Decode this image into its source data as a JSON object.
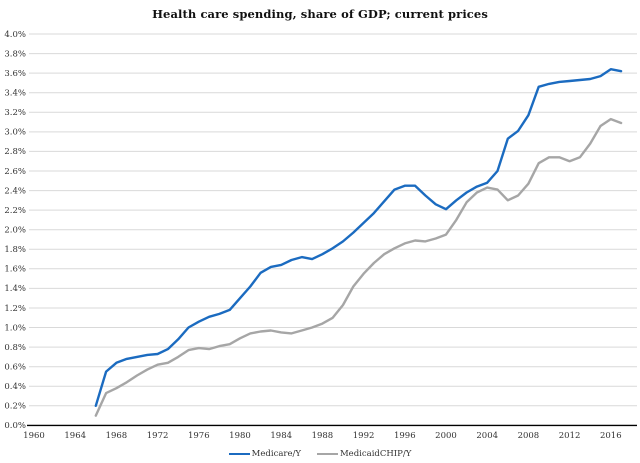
{
  "title": "Health care spending, share of GDP; current prices",
  "colors": {
    "medicare": "#1B6BC0",
    "medicaidchip": "#A6A6A6",
    "gridline": "#D9D9D9",
    "axis": "#000000",
    "tick_text": "#333333"
  },
  "legend": {
    "medicare_label": "Medicare/Y",
    "medicaidchip_label": "MedicaidCHIP/Y"
  },
  "chart_data": {
    "type": "line",
    "title": "Health care spending, share of GDP; current prices",
    "xlabel": "",
    "ylabel": "",
    "grid": true,
    "legend_position": "bottom",
    "xlim": [
      1959.5,
      2018.5
    ],
    "ylim": [
      0,
      4.0
    ],
    "x_ticks": [
      1960,
      1964,
      1968,
      1972,
      1976,
      1980,
      1984,
      1988,
      1992,
      1996,
      2000,
      2004,
      2008,
      2012,
      2016
    ],
    "y_ticks": [
      "0.0%",
      "0.2%",
      "0.4%",
      "0.6%",
      "0.8%",
      "1.0%",
      "1.2%",
      "1.4%",
      "1.6%",
      "1.8%",
      "2.0%",
      "2.2%",
      "2.4%",
      "2.6%",
      "2.8%",
      "3.0%",
      "3.2%",
      "3.4%",
      "3.6%",
      "3.8%",
      "4.0%"
    ],
    "x": [
      1966,
      1967,
      1968,
      1969,
      1970,
      1971,
      1972,
      1973,
      1974,
      1975,
      1976,
      1977,
      1978,
      1979,
      1980,
      1981,
      1982,
      1983,
      1984,
      1985,
      1986,
      1987,
      1988,
      1989,
      1990,
      1991,
      1992,
      1993,
      1994,
      1995,
      1996,
      1997,
      1998,
      1999,
      2000,
      2001,
      2002,
      2003,
      2004,
      2005,
      2006,
      2007,
      2008,
      2009,
      2010,
      2011,
      2012,
      2013,
      2014,
      2015,
      2016,
      2017
    ],
    "series": [
      {
        "id": "medicare",
        "name": "Medicare/Y",
        "color": "#1B6BC0",
        "values": [
          0.2,
          0.55,
          0.64,
          0.68,
          0.7,
          0.72,
          0.73,
          0.78,
          0.88,
          1.0,
          1.06,
          1.11,
          1.14,
          1.18,
          1.3,
          1.42,
          1.56,
          1.62,
          1.64,
          1.69,
          1.72,
          1.7,
          1.75,
          1.81,
          1.88,
          1.97,
          2.07,
          2.17,
          2.29,
          2.41,
          2.45,
          2.45,
          2.35,
          2.26,
          2.21,
          2.3,
          2.38,
          2.44,
          2.48,
          2.6,
          2.93,
          3.01,
          3.17,
          3.46,
          3.49,
          3.51,
          3.52,
          3.53,
          3.54,
          3.57,
          3.64,
          3.62
        ]
      },
      {
        "id": "medicaidchip",
        "name": "MedicaidCHIP/Y",
        "color": "#A6A6A6",
        "values": [
          0.1,
          0.33,
          0.38,
          0.44,
          0.51,
          0.57,
          0.62,
          0.64,
          0.7,
          0.77,
          0.79,
          0.78,
          0.81,
          0.83,
          0.89,
          0.94,
          0.96,
          0.97,
          0.95,
          0.94,
          0.97,
          1.0,
          1.04,
          1.1,
          1.23,
          1.42,
          1.55,
          1.66,
          1.75,
          1.81,
          1.86,
          1.89,
          1.88,
          1.91,
          1.95,
          2.1,
          2.28,
          2.38,
          2.43,
          2.41,
          2.3,
          2.35,
          2.47,
          2.68,
          2.74,
          2.74,
          2.7,
          2.74,
          2.88,
          3.06,
          3.13,
          3.09
        ]
      }
    ]
  }
}
